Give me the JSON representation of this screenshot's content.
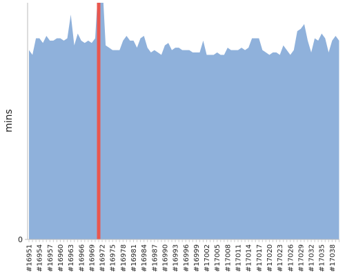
{
  "chart_data": {
    "type": "area",
    "y_label": "mins",
    "categories": [
      "#16951",
      null,
      null,
      "#16954",
      null,
      null,
      "#16957",
      null,
      null,
      "#16960",
      null,
      null,
      "#16963",
      null,
      null,
      "#16966",
      null,
      null,
      "#16969",
      null,
      null,
      "#16972",
      null,
      null,
      "#16975",
      null,
      null,
      "#16978",
      null,
      null,
      "#16981",
      null,
      null,
      "#16984",
      null,
      null,
      "#16987",
      null,
      null,
      "#16990",
      null,
      null,
      "#16993",
      null,
      null,
      "#16996",
      null,
      null,
      "#16999",
      null,
      null,
      "#17002",
      null,
      null,
      "#17005",
      null,
      null,
      "#17008",
      null,
      null,
      "#17011",
      null,
      null,
      "#17014",
      null,
      null,
      "#17017",
      null,
      null,
      "#17020",
      null,
      null,
      "#17023",
      null,
      null,
      "#17026",
      null,
      null,
      "#17029",
      null,
      null,
      "#17032",
      null,
      null,
      "#17035",
      null,
      null,
      "#17038",
      null,
      null
    ],
    "values": [
      80,
      78,
      85,
      85,
      83,
      86,
      84,
      84,
      85,
      85,
      84,
      85,
      95,
      82,
      87,
      84,
      83,
      84,
      83,
      85,
      110,
      110,
      82,
      81,
      80,
      80,
      80,
      84,
      86,
      84,
      84,
      81,
      85,
      86,
      81,
      79,
      80,
      79,
      78,
      82,
      83,
      80,
      81,
      81,
      80,
      80,
      80,
      79,
      79,
      79,
      84,
      78,
      78,
      78,
      79,
      78,
      78,
      81,
      80,
      80,
      80,
      81,
      80,
      81,
      85,
      85,
      85,
      80,
      79,
      78,
      79,
      79,
      78,
      82,
      80,
      78,
      80,
      88,
      89,
      91,
      84,
      79,
      85,
      84,
      87,
      85,
      79,
      84,
      86,
      84
    ],
    "color": "#8fb1db",
    "highlight": {
      "index": 20,
      "color": "#e8574f"
    },
    "ylim": [
      0,
      100
    ],
    "yticks": [
      0
    ]
  }
}
